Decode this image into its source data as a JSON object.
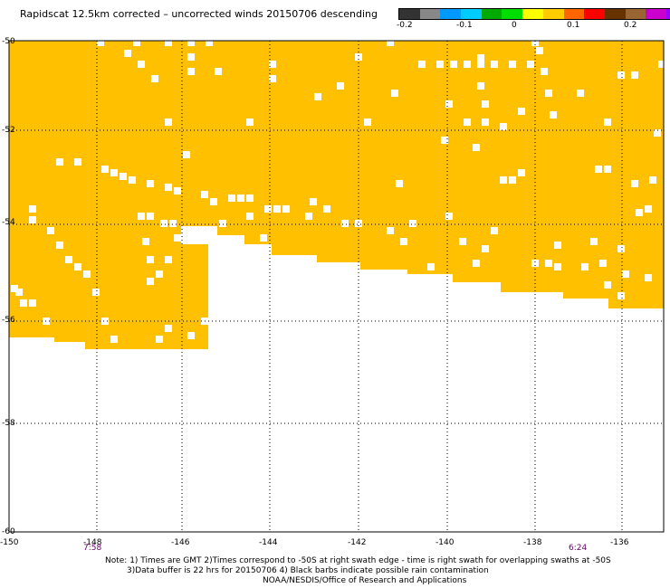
{
  "title": "Rapidscat 12.5km corrected – uncorrected winds 20150706 descending",
  "colorbar": {
    "colors": [
      "#333333",
      "#888888",
      "#0099ff",
      "#00ccff",
      "#00aa00",
      "#00dd00",
      "#ffff00",
      "#ffcc00",
      "#ff6600",
      "#ff0000",
      "#663300",
      "#996633",
      "#cc00cc",
      "#9900ff"
    ],
    "labels": [
      "-0.2",
      "-0.1",
      "0",
      "0.1",
      "0.2"
    ]
  },
  "map": {
    "fill_color": "#ffc000",
    "lon_range": [
      -150,
      -135
    ],
    "lat_range": [
      -60,
      -50
    ],
    "lon_ticks": [
      "-150",
      "-148",
      "-146",
      "-144",
      "-142",
      "-140",
      "-138",
      "-136"
    ],
    "lat_ticks": [
      "-50",
      "-52",
      "-54",
      "-56",
      "-58",
      "-60"
    ]
  },
  "times": {
    "left": "7:58",
    "right": "6:24"
  },
  "notes": {
    "line1": "Note: 1) Times are GMT 2)Times correspond to -50S at right swath edge - time is right swath for overlapping swaths at -50S",
    "line2": "3)Data buffer is 22 hrs for 20150706 4) Black barbs indicate possible rain contamination",
    "line3": "NOAA/NESDIS/Office of Research and Applications"
  }
}
